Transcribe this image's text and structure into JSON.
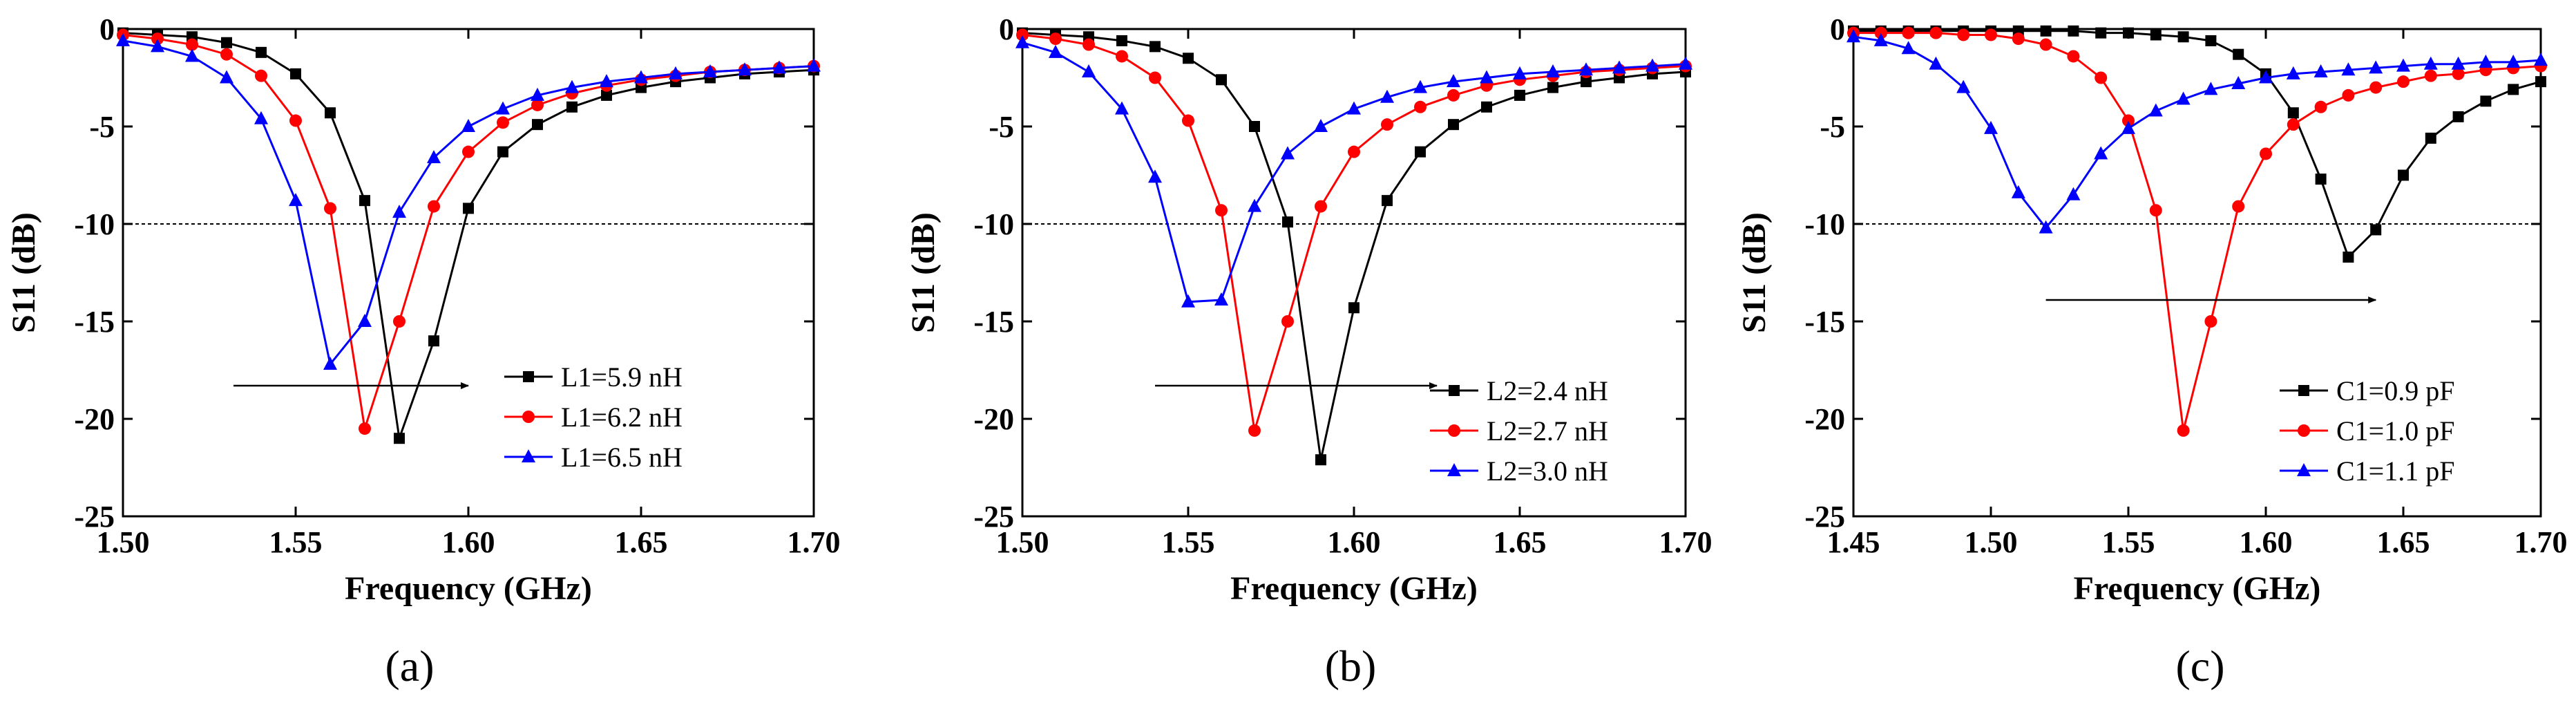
{
  "chart_data": [
    {
      "type": "line",
      "panel_label": "(a)",
      "xlabel": "Frequency (GHz)",
      "ylabel": "S11 (dB)",
      "xlim": [
        1.5,
        1.7
      ],
      "ylim": [
        -25,
        0
      ],
      "x_ticks": [
        1.5,
        1.55,
        1.6,
        1.65,
        1.7
      ],
      "x_tick_labels": [
        "1.50",
        "1.55",
        "1.60",
        "1.65",
        "1.70"
      ],
      "y_ticks": [
        0,
        -5,
        -10,
        -15,
        -20,
        -25
      ],
      "y_tick_labels": [
        "0",
        "-5",
        "-10",
        "-15",
        "-20",
        "-25"
      ],
      "reference_line_y": -10,
      "arrow": {
        "from": [
          1.532,
          -18.3
        ],
        "to": [
          1.6,
          -18.3
        ]
      },
      "legend_position": "lower-right",
      "series": [
        {
          "name": "L1=5.9 nH",
          "color": "#000000",
          "marker": "square",
          "x": [
            1.5,
            1.51,
            1.52,
            1.53,
            1.54,
            1.55,
            1.56,
            1.57,
            1.58,
            1.59,
            1.6,
            1.61,
            1.62,
            1.63,
            1.64,
            1.65,
            1.66,
            1.67,
            1.68,
            1.69,
            1.7
          ],
          "y": [
            -0.2,
            -0.3,
            -0.4,
            -0.7,
            -1.2,
            -2.3,
            -4.3,
            -8.8,
            -21.0,
            -16.0,
            -9.2,
            -6.3,
            -4.9,
            -4.0,
            -3.4,
            -3.0,
            -2.7,
            -2.5,
            -2.3,
            -2.2,
            -2.1
          ]
        },
        {
          "name": "L1=6.2 nH",
          "color": "#ff0000",
          "marker": "circle",
          "x": [
            1.5,
            1.51,
            1.52,
            1.53,
            1.54,
            1.55,
            1.56,
            1.57,
            1.58,
            1.59,
            1.6,
            1.61,
            1.62,
            1.63,
            1.64,
            1.65,
            1.66,
            1.67,
            1.68,
            1.69,
            1.7
          ],
          "y": [
            -0.3,
            -0.5,
            -0.8,
            -1.3,
            -2.4,
            -4.7,
            -9.2,
            -20.5,
            -15.0,
            -9.1,
            -6.3,
            -4.8,
            -3.9,
            -3.3,
            -2.9,
            -2.6,
            -2.4,
            -2.2,
            -2.1,
            -2.0,
            -1.9
          ]
        },
        {
          "name": "L1=6.5 nH",
          "color": "#0000ff",
          "marker": "triangle",
          "x": [
            1.5,
            1.51,
            1.52,
            1.53,
            1.54,
            1.55,
            1.56,
            1.57,
            1.58,
            1.59,
            1.6,
            1.61,
            1.62,
            1.63,
            1.64,
            1.65,
            1.66,
            1.67,
            1.68,
            1.69,
            1.7
          ],
          "y": [
            -0.6,
            -0.9,
            -1.4,
            -2.5,
            -4.6,
            -8.8,
            -17.2,
            -15.0,
            -9.4,
            -6.6,
            -5.0,
            -4.1,
            -3.4,
            -3.0,
            -2.7,
            -2.5,
            -2.3,
            -2.2,
            -2.1,
            -2.0,
            -1.9
          ]
        }
      ]
    },
    {
      "type": "line",
      "panel_label": "(b)",
      "xlabel": "Frequency (GHz)",
      "ylabel": "S11 (dB)",
      "xlim": [
        1.5,
        1.7
      ],
      "ylim": [
        -25,
        0
      ],
      "x_ticks": [
        1.5,
        1.55,
        1.6,
        1.65,
        1.7
      ],
      "x_tick_labels": [
        "1.50",
        "1.55",
        "1.60",
        "1.65",
        "1.70"
      ],
      "y_ticks": [
        0,
        -5,
        -10,
        -15,
        -20,
        -25
      ],
      "y_tick_labels": [
        "0",
        "-5",
        "-10",
        "-15",
        "-20",
        "-25"
      ],
      "reference_line_y": -10,
      "arrow": {
        "from": [
          1.54,
          -18.3
        ],
        "to": [
          1.625,
          -18.3
        ]
      },
      "legend_position": "lower-right",
      "series": [
        {
          "name": "L2=2.4 nH",
          "color": "#000000",
          "marker": "square",
          "x": [
            1.5,
            1.51,
            1.52,
            1.53,
            1.54,
            1.55,
            1.56,
            1.57,
            1.58,
            1.59,
            1.6,
            1.61,
            1.62,
            1.63,
            1.64,
            1.65,
            1.66,
            1.67,
            1.68,
            1.69,
            1.7
          ],
          "y": [
            -0.2,
            -0.3,
            -0.4,
            -0.6,
            -0.9,
            -1.5,
            -2.6,
            -5.0,
            -9.9,
            -22.1,
            -14.3,
            -8.8,
            -6.3,
            -4.9,
            -4.0,
            -3.4,
            -3.0,
            -2.7,
            -2.5,
            -2.3,
            -2.2
          ]
        },
        {
          "name": "L2=2.7 nH",
          "color": "#ff0000",
          "marker": "circle",
          "x": [
            1.5,
            1.51,
            1.52,
            1.53,
            1.54,
            1.55,
            1.56,
            1.57,
            1.58,
            1.59,
            1.6,
            1.61,
            1.62,
            1.63,
            1.64,
            1.65,
            1.66,
            1.67,
            1.68,
            1.69,
            1.7
          ],
          "y": [
            -0.3,
            -0.5,
            -0.8,
            -1.4,
            -2.5,
            -4.7,
            -9.3,
            -20.6,
            -15.0,
            -9.1,
            -6.3,
            -4.9,
            -4.0,
            -3.4,
            -2.9,
            -2.6,
            -2.4,
            -2.2,
            -2.1,
            -2.0,
            -1.9
          ]
        },
        {
          "name": "L2=3.0 nH",
          "color": "#0000ff",
          "marker": "triangle",
          "x": [
            1.5,
            1.51,
            1.52,
            1.53,
            1.54,
            1.55,
            1.56,
            1.57,
            1.58,
            1.59,
            1.6,
            1.61,
            1.62,
            1.63,
            1.64,
            1.65,
            1.66,
            1.67,
            1.68,
            1.69,
            1.7
          ],
          "y": [
            -0.7,
            -1.2,
            -2.2,
            -4.1,
            -7.6,
            -14.0,
            -13.9,
            -9.1,
            -6.4,
            -5.0,
            -4.1,
            -3.5,
            -3.0,
            -2.7,
            -2.5,
            -2.3,
            -2.2,
            -2.1,
            -2.0,
            -1.9,
            -1.8
          ]
        }
      ]
    },
    {
      "type": "line",
      "panel_label": "(c)",
      "xlabel": "Frequency (GHz)",
      "ylabel": "S11 (dB)",
      "xlim": [
        1.45,
        1.7
      ],
      "ylim": [
        -25,
        0
      ],
      "x_ticks": [
        1.45,
        1.5,
        1.55,
        1.6,
        1.65,
        1.7
      ],
      "x_tick_labels": [
        "1.45",
        "1.50",
        "1.55",
        "1.60",
        "1.65",
        "1.70"
      ],
      "y_ticks": [
        0,
        -5,
        -10,
        -15,
        -20,
        -25
      ],
      "y_tick_labels": [
        "0",
        "-5",
        "-10",
        "-15",
        "-20",
        "-25"
      ],
      "reference_line_y": -10,
      "arrow": {
        "from": [
          1.52,
          -13.9
        ],
        "to": [
          1.64,
          -13.9
        ]
      },
      "legend_position": "lower-right",
      "series": [
        {
          "name": "C1=0.9 pF",
          "color": "#000000",
          "marker": "square",
          "x": [
            1.45,
            1.46,
            1.47,
            1.48,
            1.49,
            1.5,
            1.51,
            1.52,
            1.53,
            1.54,
            1.55,
            1.56,
            1.57,
            1.58,
            1.59,
            1.6,
            1.61,
            1.62,
            1.63,
            1.64,
            1.65,
            1.66,
            1.67,
            1.68,
            1.69,
            1.7
          ],
          "y": [
            -0.1,
            -0.1,
            -0.1,
            -0.1,
            -0.1,
            -0.1,
            -0.1,
            -0.1,
            -0.1,
            -0.2,
            -0.2,
            -0.3,
            -0.4,
            -0.6,
            -1.3,
            -2.3,
            -4.3,
            -7.7,
            -11.7,
            -10.3,
            -7.5,
            -5.6,
            -4.5,
            -3.7,
            -3.1,
            -2.7
          ]
        },
        {
          "name": "C1=1.0 pF",
          "color": "#ff0000",
          "marker": "circle",
          "x": [
            1.45,
            1.46,
            1.47,
            1.48,
            1.49,
            1.5,
            1.51,
            1.52,
            1.53,
            1.54,
            1.55,
            1.56,
            1.57,
            1.58,
            1.59,
            1.6,
            1.61,
            1.62,
            1.63,
            1.64,
            1.65,
            1.66,
            1.67,
            1.68,
            1.69,
            1.7
          ],
          "y": [
            -0.2,
            -0.2,
            -0.2,
            -0.2,
            -0.3,
            -0.3,
            -0.5,
            -0.8,
            -1.4,
            -2.5,
            -4.7,
            -9.3,
            -20.6,
            -15.0,
            -9.1,
            -6.4,
            -4.9,
            -4.0,
            -3.4,
            -3.0,
            -2.7,
            -2.4,
            -2.3,
            -2.1,
            -2.0,
            -1.9
          ]
        },
        {
          "name": "C1=1.1 pF",
          "color": "#0000ff",
          "marker": "triangle",
          "x": [
            1.45,
            1.46,
            1.47,
            1.48,
            1.49,
            1.5,
            1.51,
            1.52,
            1.53,
            1.54,
            1.55,
            1.56,
            1.57,
            1.58,
            1.59,
            1.6,
            1.61,
            1.62,
            1.63,
            1.64,
            1.65,
            1.66,
            1.67,
            1.68,
            1.69,
            1.7
          ],
          "y": [
            -0.4,
            -0.6,
            -1.0,
            -1.8,
            -3.0,
            -5.1,
            -8.4,
            -10.2,
            -8.5,
            -6.4,
            -5.1,
            -4.2,
            -3.6,
            -3.1,
            -2.8,
            -2.5,
            -2.3,
            -2.2,
            -2.1,
            -2.0,
            -1.9,
            -1.8,
            -1.8,
            -1.7,
            -1.7,
            -1.6
          ]
        }
      ]
    }
  ]
}
